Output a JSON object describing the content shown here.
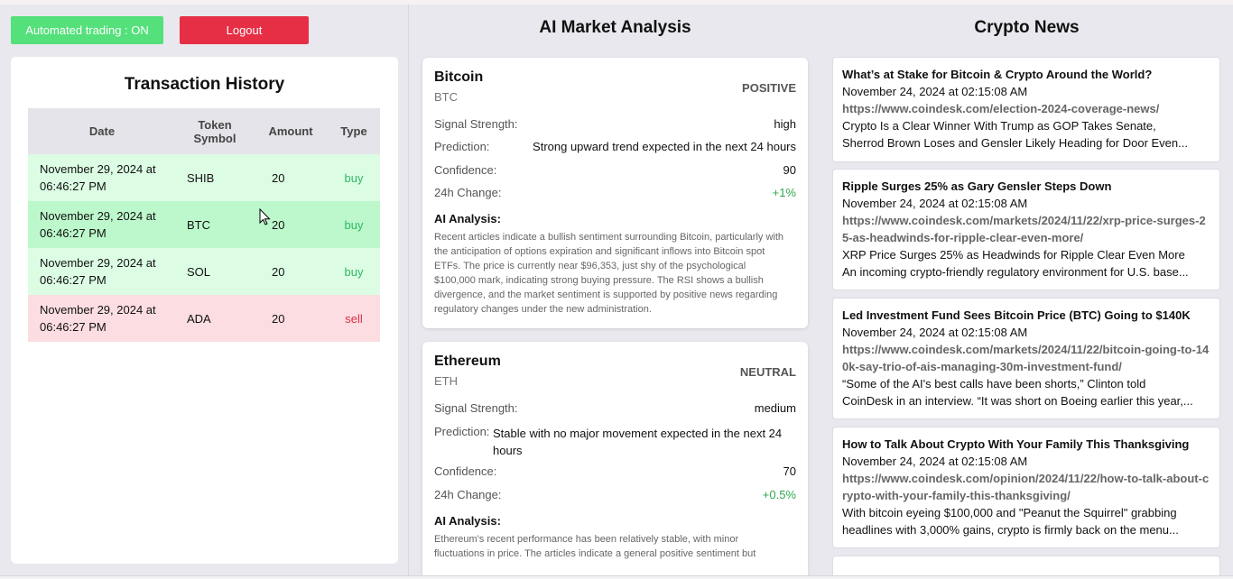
{
  "controls": {
    "auto_trading_label": "Automated trading : ON",
    "logout_label": "Logout"
  },
  "transactions": {
    "title": "Transaction History",
    "headers": {
      "date": "Date",
      "token": "Token Symbol",
      "amount": "Amount",
      "type": "Type"
    },
    "rows": [
      {
        "date": "November 29, 2024 at 06:46:27 PM",
        "token": "SHIB",
        "amount": "20",
        "type": "buy"
      },
      {
        "date": "November 29, 2024 at 06:46:27 PM",
        "token": "BTC",
        "amount": "20",
        "type": "buy"
      },
      {
        "date": "November 29, 2024 at 06:46:27 PM",
        "token": "SOL",
        "amount": "20",
        "type": "buy"
      },
      {
        "date": "November 29, 2024 at 06:46:27 PM",
        "token": "ADA",
        "amount": "20",
        "type": "sell"
      }
    ]
  },
  "analysis": {
    "title": "AI Market Analysis",
    "labels": {
      "signal": "Signal Strength:",
      "prediction": "Prediction:",
      "confidence": "Confidence:",
      "change": "24h Change:",
      "ai_analysis": "AI Analysis:"
    },
    "coins": [
      {
        "name": "Bitcoin",
        "symbol": "BTC",
        "sentiment": "POSITIVE",
        "signal": "high",
        "prediction": "Strong upward trend expected in the next 24 hours",
        "confidence": "90",
        "change": "+1%",
        "text": "Recent articles indicate a bullish sentiment surrounding Bitcoin, particularly with the anticipation of options expiration and significant inflows into Bitcoin spot ETFs. The price is currently near $96,353, just shy of the psychological $100,000 mark, indicating strong buying pressure. The RSI shows a bullish divergence, and the market sentiment is supported by positive news regarding regulatory changes under the new administration."
      },
      {
        "name": "Ethereum",
        "symbol": "ETH",
        "sentiment": "NEUTRAL",
        "signal": "medium",
        "prediction": "Stable with no major movement expected in the next 24 hours",
        "confidence": "70",
        "change": "+0.5%",
        "text": "Ethereum's recent performance has been relatively stable, with minor fluctuations in price. The articles indicate a general positive sentiment but"
      }
    ]
  },
  "news": {
    "title": "Crypto News",
    "items": [
      {
        "title": "What’s at Stake for Bitcoin & Crypto Around the World?",
        "date": "November 24, 2024 at 02:15:08 AM",
        "url": "https://www.coindesk.com/election-2024-coverage-news/",
        "line1": "Crypto Is a Clear Winner With Trump as GOP Takes Senate,",
        "line2": "Sherrod Brown Loses and Gensler Likely Heading for Door Even..."
      },
      {
        "title": "Ripple Surges 25% as Gary Gensler Steps Down",
        "date": "November 24, 2024 at 02:15:08 AM",
        "url": "https://www.coindesk.com/markets/2024/11/22/xrp-price-surges-25-as-headwinds-for-ripple-clear-even-more/",
        "line1": "XRP Price Surges 25% as Headwinds for Ripple Clear Even More",
        "line2": "An incoming crypto-friendly regulatory environment for U.S. base..."
      },
      {
        "title": "Led Investment Fund Sees Bitcoin Price (BTC) Going to $140K",
        "date": "November 24, 2024 at 02:15:08 AM",
        "url": "https://www.coindesk.com/markets/2024/11/22/bitcoin-going-to-140k-say-trio-of-ais-managing-30m-investment-fund/",
        "line1": "“Some of the AI's best calls have been shorts,” Clinton told",
        "line2": "CoinDesk in an interview. “It was short on Boeing earlier this year,..."
      },
      {
        "title": "How to Talk About Crypto With Your Family This Thanksgiving",
        "date": "November 24, 2024 at 02:15:08 AM",
        "url": "https://www.coindesk.com/opinion/2024/11/22/how-to-talk-about-crypto-with-your-family-this-thanksgiving/",
        "line1": "With bitcoin eyeing $100,000 and \"Peanut the Squirrel\" grabbing",
        "line2": "headlines with 3,000% gains, crypto is firmly back on the menu..."
      }
    ]
  }
}
